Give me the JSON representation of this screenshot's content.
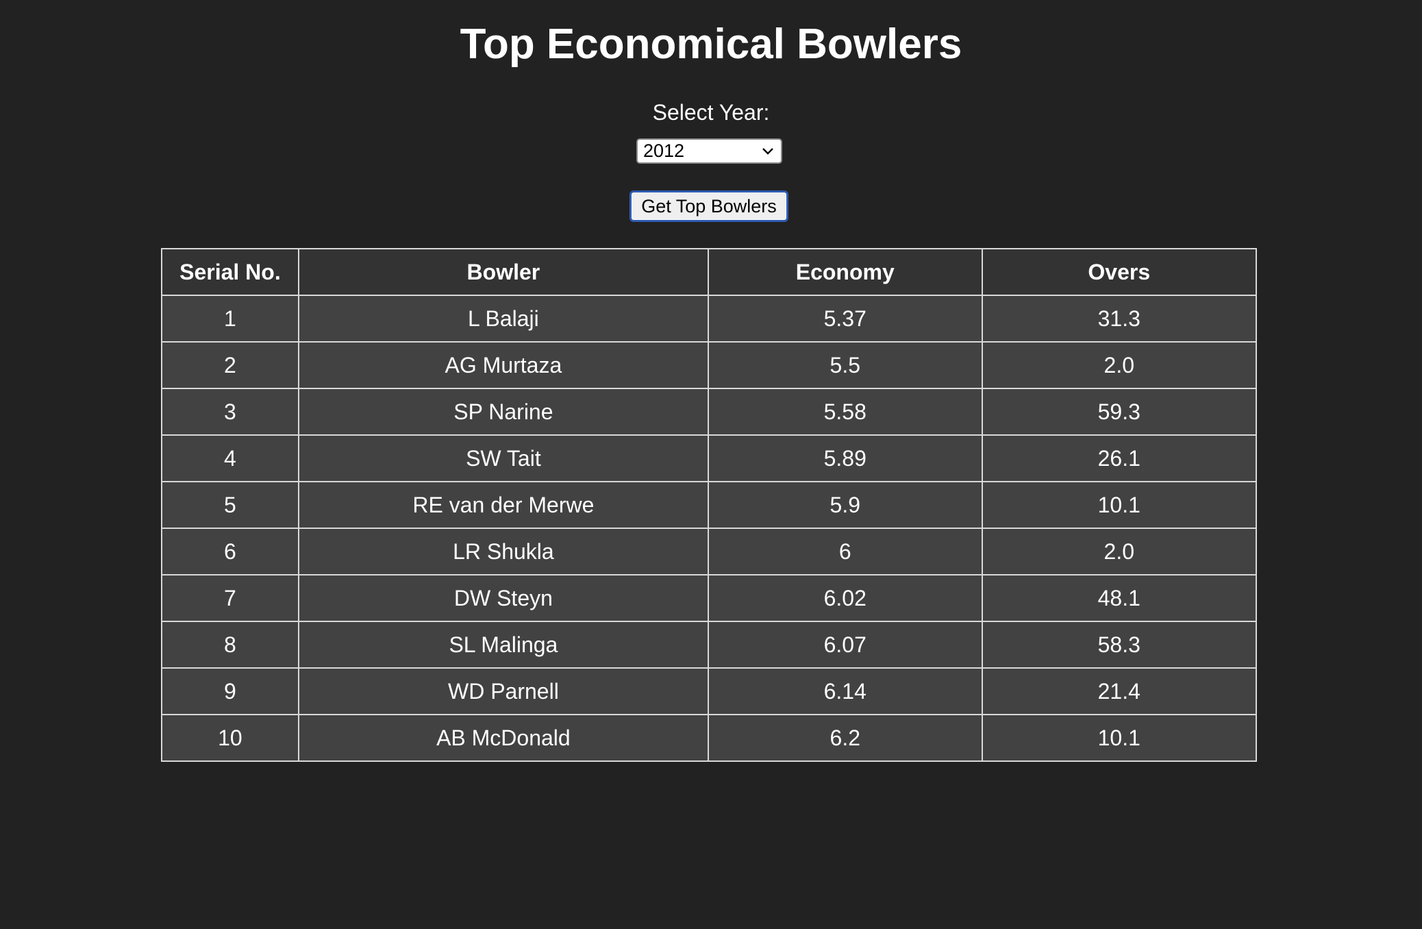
{
  "page": {
    "title": "Top Economical Bowlers"
  },
  "form": {
    "year_label": "Select Year:",
    "selected_year": "2012",
    "submit_label": "Get Top Bowlers"
  },
  "table": {
    "headers": [
      "Serial No.",
      "Bowler",
      "Economy",
      "Overs"
    ],
    "rows": [
      {
        "serial": "1",
        "bowler": "L Balaji",
        "economy": "5.37",
        "overs": "31.3"
      },
      {
        "serial": "2",
        "bowler": "AG Murtaza",
        "economy": "5.5",
        "overs": "2.0"
      },
      {
        "serial": "3",
        "bowler": "SP Narine",
        "economy": "5.58",
        "overs": "59.3"
      },
      {
        "serial": "4",
        "bowler": "SW Tait",
        "economy": "5.89",
        "overs": "26.1"
      },
      {
        "serial": "5",
        "bowler": "RE van der Merwe",
        "economy": "5.9",
        "overs": "10.1"
      },
      {
        "serial": "6",
        "bowler": "LR Shukla",
        "economy": "6",
        "overs": "2.0"
      },
      {
        "serial": "7",
        "bowler": "DW Steyn",
        "economy": "6.02",
        "overs": "48.1"
      },
      {
        "serial": "8",
        "bowler": "SL Malinga",
        "economy": "6.07",
        "overs": "58.3"
      },
      {
        "serial": "9",
        "bowler": "WD Parnell",
        "economy": "6.14",
        "overs": "21.4"
      },
      {
        "serial": "10",
        "bowler": "AB McDonald",
        "economy": "6.2",
        "overs": "10.1"
      }
    ]
  },
  "colors": {
    "background": "#222222",
    "header_cell": "#333333",
    "body_cell": "#424242",
    "border": "#d9d9d9",
    "button_focus": "#2f5db3"
  },
  "icons": {
    "select_caret": "chevron-down-icon"
  }
}
